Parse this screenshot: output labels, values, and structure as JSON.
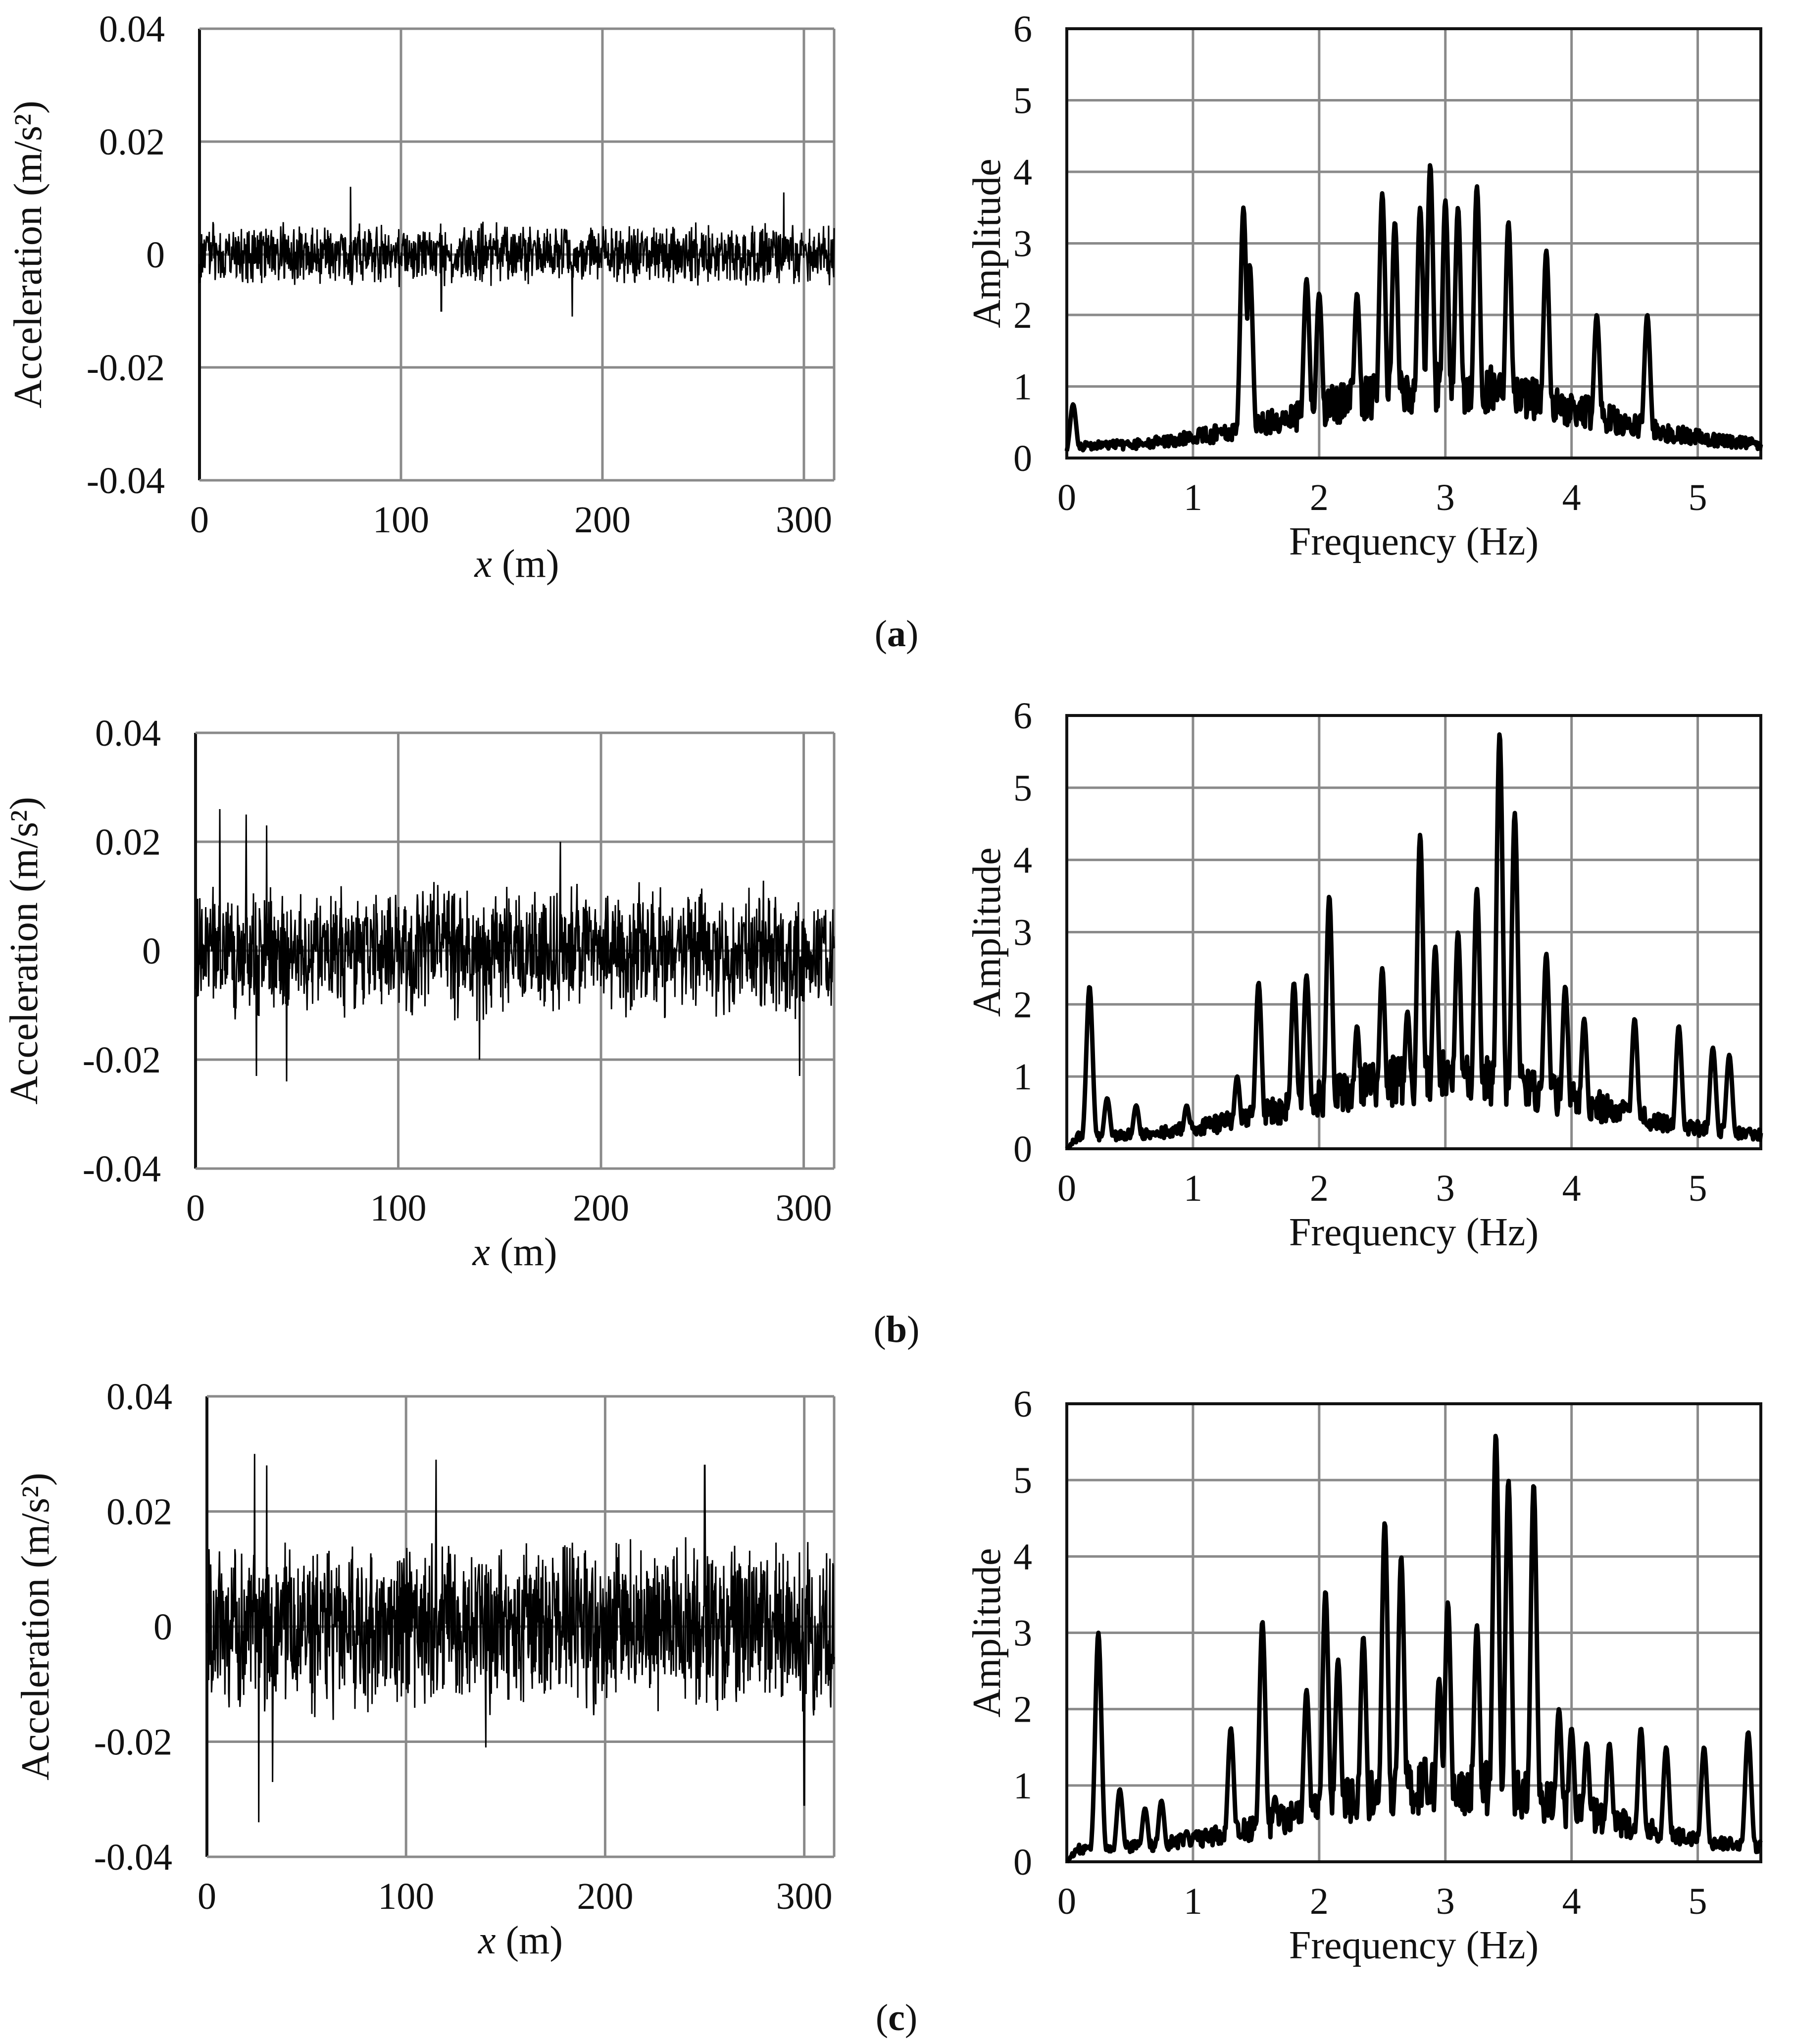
{
  "figure": {
    "rows": [
      {
        "panel_label": "(a)",
        "time_series": {
          "type": "line",
          "title": "",
          "xlabel_italic": "x",
          "xlabel_rest": " (m)",
          "ylabel": "Acceleration (m/s²)",
          "xlim": [
            0,
            315
          ],
          "ylim": [
            -0.04,
            0.04
          ],
          "xticks": [
            0,
            100,
            200,
            300
          ],
          "yticks": [
            -0.04,
            -0.02,
            0,
            0.02,
            0.04
          ],
          "ytick_labels": [
            "-0.04",
            "-0.02",
            "0",
            "0.02",
            "0.04"
          ],
          "grid": true,
          "signal_amplitude": 0.004,
          "signal_peaks": [
            {
              "x": 75,
              "y": 0.012
            },
            {
              "x": 290,
              "y": 0.011
            },
            {
              "x": 185,
              "y": -0.011
            },
            {
              "x": 120,
              "y": -0.01
            }
          ]
        },
        "spectrum": {
          "type": "line",
          "title": "",
          "xlabel": "Frequency (Hz)",
          "ylabel": "Amplitude",
          "xlim": [
            0,
            5.5
          ],
          "ylim": [
            0,
            6
          ],
          "xticks": [
            0,
            1,
            2,
            3,
            4,
            5
          ],
          "yticks": [
            0,
            1,
            2,
            3,
            4,
            5,
            6
          ],
          "grid": true,
          "peaks": [
            {
              "f": 0.05,
              "a": 0.75
            },
            {
              "f": 1.4,
              "a": 3.5
            },
            {
              "f": 1.45,
              "a": 2.7
            },
            {
              "f": 1.9,
              "a": 2.5
            },
            {
              "f": 2.0,
              "a": 2.3
            },
            {
              "f": 2.3,
              "a": 2.3
            },
            {
              "f": 2.5,
              "a": 3.7
            },
            {
              "f": 2.6,
              "a": 3.3
            },
            {
              "f": 2.8,
              "a": 3.5
            },
            {
              "f": 2.88,
              "a": 4.1
            },
            {
              "f": 3.0,
              "a": 3.6
            },
            {
              "f": 3.1,
              "a": 3.5
            },
            {
              "f": 3.25,
              "a": 3.8
            },
            {
              "f": 3.5,
              "a": 3.3
            },
            {
              "f": 3.8,
              "a": 2.9
            },
            {
              "f": 4.2,
              "a": 2.0
            },
            {
              "f": 4.6,
              "a": 2.0
            }
          ]
        }
      },
      {
        "panel_label": "(b)",
        "time_series": {
          "type": "line",
          "title": "",
          "xlabel_italic": "x",
          "xlabel_rest": " (m)",
          "ylabel": "Acceleration (m/s²)",
          "xlim": [
            0,
            315
          ],
          "ylim": [
            -0.04,
            0.04
          ],
          "xticks": [
            0,
            100,
            200,
            300
          ],
          "yticks": [
            -0.04,
            -0.02,
            0,
            0.02,
            0.04
          ],
          "ytick_labels": [
            "-0.04",
            "-0.02",
            "0",
            "0.02",
            "0.04"
          ],
          "grid": true,
          "signal_amplitude": 0.009,
          "signal_peaks": [
            {
              "x": 12,
              "y": 0.026
            },
            {
              "x": 25,
              "y": 0.025
            },
            {
              "x": 35,
              "y": 0.023
            },
            {
              "x": 45,
              "y": -0.024
            },
            {
              "x": 30,
              "y": -0.023
            },
            {
              "x": 180,
              "y": 0.02
            },
            {
              "x": 140,
              "y": -0.02
            },
            {
              "x": 298,
              "y": -0.023
            }
          ]
        },
        "spectrum": {
          "type": "line",
          "title": "",
          "xlabel": "Frequency (Hz)",
          "ylabel": "Amplitude",
          "xlim": [
            0,
            5.5
          ],
          "ylim": [
            0,
            6
          ],
          "xticks": [
            0,
            1,
            2,
            3,
            4,
            5
          ],
          "yticks": [
            0,
            1,
            2,
            3,
            4,
            5,
            6
          ],
          "grid": true,
          "peaks": [
            {
              "f": 0.18,
              "a": 2.25
            },
            {
              "f": 0.32,
              "a": 0.7
            },
            {
              "f": 0.55,
              "a": 0.6
            },
            {
              "f": 0.95,
              "a": 0.6
            },
            {
              "f": 1.35,
              "a": 1.0
            },
            {
              "f": 1.52,
              "a": 2.3
            },
            {
              "f": 1.8,
              "a": 2.3
            },
            {
              "f": 1.9,
              "a": 2.4
            },
            {
              "f": 2.08,
              "a": 3.5
            },
            {
              "f": 2.3,
              "a": 1.7
            },
            {
              "f": 2.5,
              "a": 2.5
            },
            {
              "f": 2.7,
              "a": 1.9
            },
            {
              "f": 2.8,
              "a": 4.35
            },
            {
              "f": 2.92,
              "a": 2.8
            },
            {
              "f": 3.1,
              "a": 3.0
            },
            {
              "f": 3.25,
              "a": 3.6
            },
            {
              "f": 3.43,
              "a": 5.75
            },
            {
              "f": 3.55,
              "a": 4.65
            },
            {
              "f": 3.8,
              "a": 2.7
            },
            {
              "f": 3.95,
              "a": 2.25
            },
            {
              "f": 4.1,
              "a": 1.8
            },
            {
              "f": 4.5,
              "a": 1.8
            },
            {
              "f": 4.85,
              "a": 1.7
            },
            {
              "f": 5.12,
              "a": 1.4
            },
            {
              "f": 5.25,
              "a": 1.3
            }
          ]
        }
      },
      {
        "panel_label": "(c)",
        "time_series": {
          "type": "line",
          "title": "",
          "xlabel_italic": "x",
          "xlabel_rest": " (m)",
          "ylabel": "Acceleration (m/s²)",
          "xlim": [
            0,
            315
          ],
          "ylim": [
            -0.04,
            0.04
          ],
          "xticks": [
            0,
            100,
            200,
            300
          ],
          "yticks": [
            -0.04,
            -0.02,
            0,
            0.02,
            0.04
          ],
          "ytick_labels": [
            "-0.04",
            "-0.02",
            "0",
            "0.02",
            "0.04"
          ],
          "grid": true,
          "signal_amplitude": 0.011,
          "signal_peaks": [
            {
              "x": 24,
              "y": 0.03
            },
            {
              "x": 30,
              "y": 0.028
            },
            {
              "x": 26,
              "y": -0.034
            },
            {
              "x": 33,
              "y": -0.027
            },
            {
              "x": 115,
              "y": 0.029
            },
            {
              "x": 250,
              "y": 0.028
            },
            {
              "x": 300,
              "y": -0.031
            },
            {
              "x": 140,
              "y": -0.021
            }
          ]
        },
        "spectrum": {
          "type": "line",
          "title": "",
          "xlabel": "Frequency (Hz)",
          "ylabel": "Amplitude",
          "xlim": [
            0,
            5.5
          ],
          "ylim": [
            0,
            6
          ],
          "xticks": [
            0,
            1,
            2,
            3,
            4,
            5
          ],
          "yticks": [
            0,
            1,
            2,
            3,
            4,
            5,
            6
          ],
          "grid": true,
          "peaks": [
            {
              "f": 0.25,
              "a": 3.0
            },
            {
              "f": 0.42,
              "a": 0.95
            },
            {
              "f": 0.62,
              "a": 0.7
            },
            {
              "f": 0.75,
              "a": 0.8
            },
            {
              "f": 0.95,
              "a": 0.4
            },
            {
              "f": 1.3,
              "a": 1.75
            },
            {
              "f": 1.55,
              "a": 3.15
            },
            {
              "f": 1.65,
              "a": 0.85
            },
            {
              "f": 1.9,
              "a": 2.25
            },
            {
              "f": 2.05,
              "a": 3.55
            },
            {
              "f": 2.15,
              "a": 2.65
            },
            {
              "f": 2.35,
              "a": 2.95
            },
            {
              "f": 2.52,
              "a": 4.45
            },
            {
              "f": 2.65,
              "a": 4.0
            },
            {
              "f": 2.95,
              "a": 2.4
            },
            {
              "f": 3.02,
              "a": 3.4
            },
            {
              "f": 3.25,
              "a": 3.1
            },
            {
              "f": 3.4,
              "a": 5.6
            },
            {
              "f": 3.5,
              "a": 5.0
            },
            {
              "f": 3.7,
              "a": 4.95
            },
            {
              "f": 3.9,
              "a": 2.0
            },
            {
              "f": 4.0,
              "a": 1.75
            },
            {
              "f": 4.12,
              "a": 1.55
            },
            {
              "f": 4.3,
              "a": 1.55
            },
            {
              "f": 4.55,
              "a": 1.75
            },
            {
              "f": 4.75,
              "a": 1.5
            },
            {
              "f": 5.05,
              "a": 1.5
            },
            {
              "f": 5.4,
              "a": 1.7
            }
          ]
        }
      }
    ]
  },
  "chart_data": [
    {
      "type": "line",
      "panel": "(a) time series",
      "xlabel": "x (m)",
      "ylabel": "Acceleration (m/s²)",
      "xlim": [
        0,
        315
      ],
      "ylim": [
        -0.04,
        0.04
      ],
      "description_values": "noise band approx ±0.004 m/s², max ≈ 0.012 at x≈75 m"
    },
    {
      "type": "line",
      "panel": "(a) spectrum",
      "xlabel": "Frequency (Hz)",
      "ylabel": "Amplitude",
      "xlim": [
        0,
        5.5
      ],
      "ylim": [
        0,
        6
      ],
      "x": [
        0.05,
        1.4,
        1.9,
        2.5,
        2.88,
        3.0,
        3.25,
        3.5,
        3.8,
        4.6
      ],
      "y": [
        0.75,
        3.5,
        2.5,
        3.7,
        4.1,
        3.6,
        3.8,
        3.3,
        2.9,
        2.0
      ]
    },
    {
      "type": "line",
      "panel": "(b) time series",
      "xlabel": "x (m)",
      "ylabel": "Acceleration (m/s²)",
      "xlim": [
        0,
        315
      ],
      "ylim": [
        -0.04,
        0.04
      ],
      "description_values": "band approx ±0.009 m/s², peaks ≈ 0.026 near x≈12 m"
    },
    {
      "type": "line",
      "panel": "(b) spectrum",
      "xlabel": "Frequency (Hz)",
      "ylabel": "Amplitude",
      "xlim": [
        0,
        5.5
      ],
      "ylim": [
        0,
        6
      ],
      "x": [
        0.18,
        1.52,
        2.08,
        2.5,
        2.8,
        3.25,
        3.43,
        3.55,
        3.8,
        4.5,
        4.85,
        5.12
      ],
      "y": [
        2.25,
        2.3,
        3.5,
        2.5,
        4.35,
        3.6,
        5.75,
        4.65,
        2.7,
        1.8,
        1.7,
        1.4
      ]
    },
    {
      "type": "line",
      "panel": "(c) time series",
      "xlabel": "x (m)",
      "ylabel": "Acceleration (m/s²)",
      "xlim": [
        0,
        315
      ],
      "ylim": [
        -0.04,
        0.04
      ],
      "description_values": "band approx ±0.011 m/s², min ≈ -0.034 near x≈26 m"
    },
    {
      "type": "line",
      "panel": "(c) spectrum",
      "xlabel": "Frequency (Hz)",
      "ylabel": "Amplitude",
      "xlim": [
        0,
        5.5
      ],
      "ylim": [
        0,
        6
      ],
      "x": [
        0.25,
        1.3,
        1.55,
        2.05,
        2.52,
        2.65,
        3.02,
        3.4,
        3.5,
        3.7,
        4.55,
        5.4
      ],
      "y": [
        3.0,
        1.75,
        3.15,
        3.55,
        4.45,
        4.0,
        3.4,
        5.6,
        5.0,
        4.95,
        1.75,
        1.7
      ]
    }
  ]
}
